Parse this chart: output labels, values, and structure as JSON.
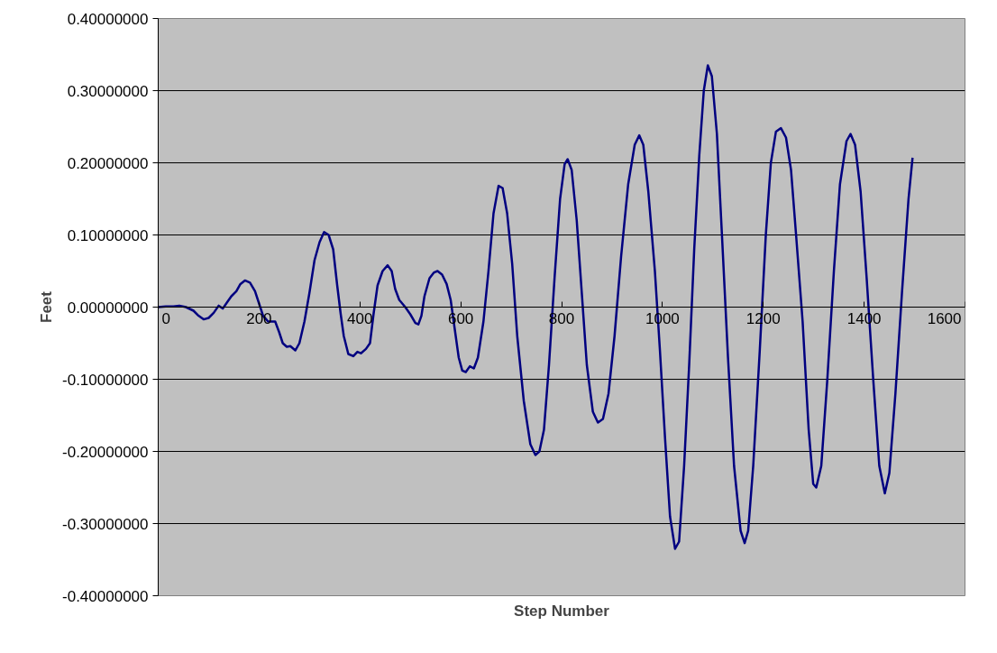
{
  "chart_data": {
    "type": "line",
    "xlabel": "Step Number",
    "ylabel": "Feet",
    "xlim": [
      0,
      1600
    ],
    "ylim": [
      -0.4,
      0.4
    ],
    "xticks": [
      0,
      200,
      400,
      600,
      800,
      1000,
      1200,
      1400,
      1600
    ],
    "yticks": [
      {
        "value": -0.4,
        "label": "-0.40000000"
      },
      {
        "value": -0.3,
        "label": "-0.30000000"
      },
      {
        "value": -0.2,
        "label": "-0.20000000"
      },
      {
        "value": -0.1,
        "label": "-0.10000000"
      },
      {
        "value": 0,
        "label": "0.00000000"
      },
      {
        "value": 0.1,
        "label": "0.10000000"
      },
      {
        "value": 0.2,
        "label": "0.20000000"
      },
      {
        "value": 0.3,
        "label": "0.30000000"
      },
      {
        "value": 0.4,
        "label": "0.40000000"
      }
    ],
    "grid": "y",
    "marker": "none",
    "line_style": "solid",
    "x": [
      0,
      15,
      30,
      42,
      55,
      70,
      80,
      90,
      100,
      110,
      120,
      128,
      135,
      145,
      155,
      163,
      172,
      182,
      192,
      200,
      208,
      218,
      232,
      240,
      247,
      255,
      262,
      272,
      280,
      290,
      300,
      310,
      320,
      329,
      338,
      347,
      355,
      362,
      368,
      377,
      387,
      395,
      402,
      412,
      420,
      427,
      435,
      445,
      455,
      463,
      470,
      478,
      490,
      500,
      510,
      516,
      522,
      528,
      538,
      547,
      554,
      563,
      572,
      580,
      588,
      596,
      603,
      610,
      618,
      626,
      634,
      645,
      655,
      665,
      675,
      683,
      692,
      702,
      712,
      725,
      738,
      748,
      756,
      765,
      775,
      786,
      797,
      806,
      812,
      820,
      830,
      840,
      850,
      862,
      872,
      882,
      893,
      905,
      918,
      932,
      945,
      954,
      962,
      972,
      985,
      995,
      1005,
      1015,
      1025,
      1033,
      1043,
      1053,
      1063,
      1073,
      1082,
      1090,
      1098,
      1108,
      1118,
      1130,
      1142,
      1155,
      1163,
      1170,
      1180,
      1193,
      1205,
      1215,
      1225,
      1235,
      1245,
      1255,
      1265,
      1278,
      1290,
      1299,
      1305,
      1315,
      1327,
      1340,
      1352,
      1365,
      1373,
      1382,
      1393,
      1405,
      1418,
      1430,
      1441,
      1450,
      1462,
      1475,
      1488,
      1496
    ],
    "series": [
      {
        "color": "#000080",
        "values": [
          0,
          0.001,
          0.001,
          0.002,
          0.0,
          -0.005,
          -0.012,
          -0.017,
          -0.015,
          -0.008,
          0.002,
          -0.002,
          0.005,
          0.015,
          0.022,
          0.032,
          0.037,
          0.034,
          0.022,
          0.005,
          -0.012,
          -0.02,
          -0.02,
          -0.035,
          -0.05,
          -0.055,
          -0.054,
          -0.06,
          -0.05,
          -0.02,
          0.02,
          0.065,
          0.09,
          0.104,
          0.1,
          0.08,
          0.03,
          -0.01,
          -0.04,
          -0.065,
          -0.068,
          -0.062,
          -0.064,
          -0.058,
          -0.05,
          -0.01,
          0.03,
          0.05,
          0.058,
          0.05,
          0.025,
          0.01,
          0.0,
          -0.01,
          -0.022,
          -0.024,
          -0.012,
          0.015,
          0.04,
          0.048,
          0.05,
          0.045,
          0.032,
          0.01,
          -0.03,
          -0.07,
          -0.088,
          -0.09,
          -0.082,
          -0.085,
          -0.07,
          -0.02,
          0.05,
          0.13,
          0.168,
          0.165,
          0.13,
          0.06,
          -0.04,
          -0.13,
          -0.19,
          -0.205,
          -0.2,
          -0.17,
          -0.08,
          0.04,
          0.15,
          0.198,
          0.205,
          0.19,
          0.12,
          0.02,
          -0.08,
          -0.145,
          -0.16,
          -0.155,
          -0.12,
          -0.04,
          0.07,
          0.17,
          0.225,
          0.238,
          0.225,
          0.16,
          0.05,
          -0.06,
          -0.18,
          -0.29,
          -0.335,
          -0.325,
          -0.22,
          -0.08,
          0.08,
          0.21,
          0.3,
          0.335,
          0.32,
          0.24,
          0.1,
          -0.07,
          -0.22,
          -0.31,
          -0.327,
          -0.31,
          -0.22,
          -0.06,
          0.1,
          0.2,
          0.243,
          0.248,
          0.235,
          0.19,
          0.1,
          -0.02,
          -0.17,
          -0.245,
          -0.25,
          -0.22,
          -0.1,
          0.05,
          0.17,
          0.23,
          0.24,
          0.225,
          0.16,
          0.04,
          -0.1,
          -0.22,
          -0.258,
          -0.23,
          -0.12,
          0.02,
          0.15,
          0.207
        ]
      }
    ]
  }
}
